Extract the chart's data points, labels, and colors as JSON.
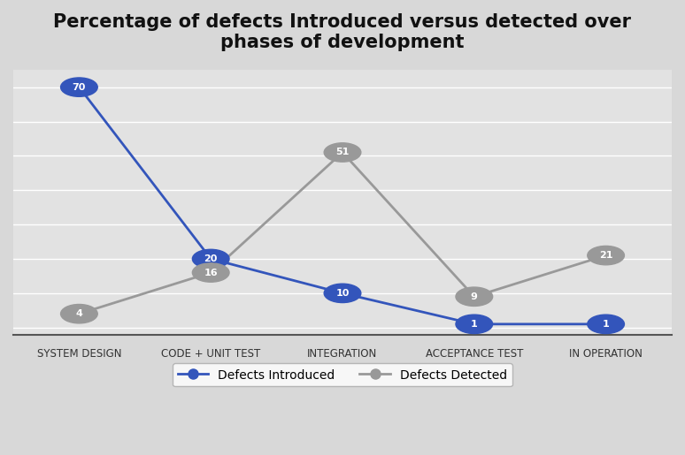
{
  "title": "Percentage of defects Introduced versus detected over\nphases of development",
  "categories": [
    "SYSTEM DESIGN",
    "CODE + UNIT TEST",
    "INTEGRATION",
    "ACCEPTANCE TEST",
    "IN OPERATION"
  ],
  "introduced": [
    70,
    20,
    10,
    1,
    1
  ],
  "detected": [
    4,
    16,
    51,
    9,
    21
  ],
  "introduced_labels": [
    "70",
    "20",
    "10",
    "1",
    "1"
  ],
  "detected_labels": [
    "4",
    "16",
    "51",
    "9",
    "21"
  ],
  "introduced_color": "#3355BB",
  "detected_color": "#999999",
  "background_color_top": "#D0D0D0",
  "background_color_mid": "#E8E8E8",
  "background_color_plot": "#E0E0E0",
  "title_fontsize": 15,
  "ylim": [
    -2,
    75
  ],
  "legend_introduced": "Defects Introduced",
  "legend_detected": "Defects Detected"
}
